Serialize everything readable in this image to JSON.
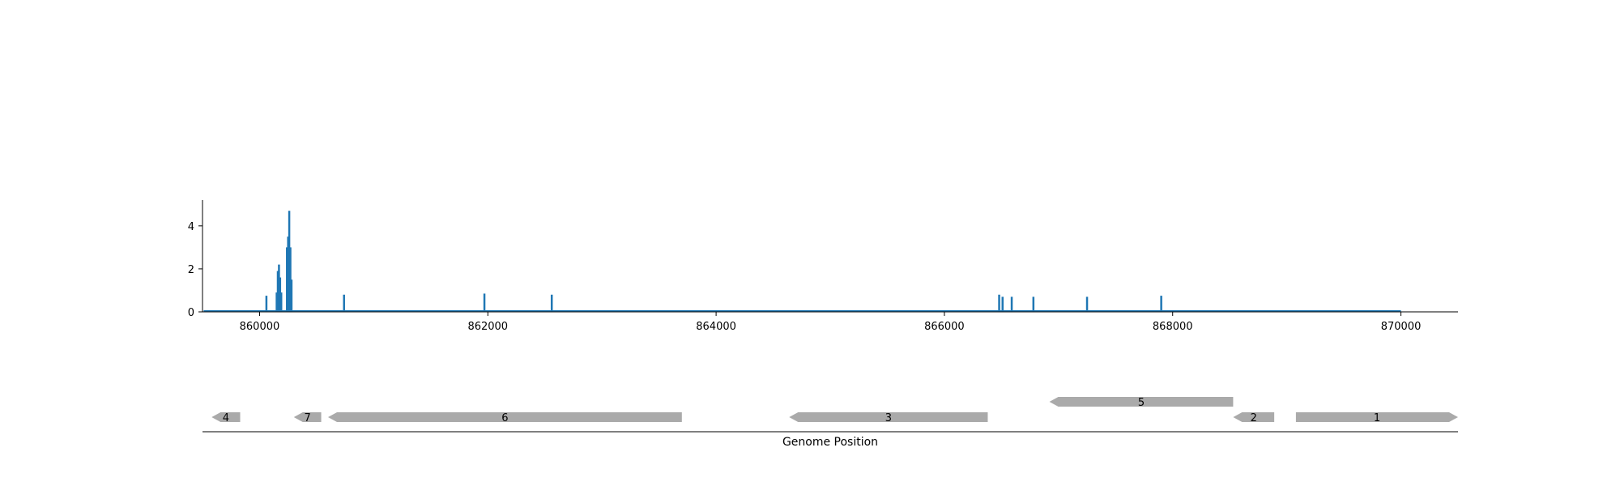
{
  "chart_data": [
    {
      "type": "bar",
      "title": "",
      "xlabel": "",
      "ylabel": "",
      "xlim": [
        859500,
        870500
      ],
      "ylim": [
        0,
        5.2
      ],
      "x_ticks": [
        860000,
        862000,
        864000,
        866000,
        868000,
        870000
      ],
      "x_tick_labels": [
        "860000",
        "862000",
        "864000",
        "866000",
        "868000",
        "870000"
      ],
      "y_ticks": [
        0,
        2,
        4
      ],
      "y_tick_labels": [
        "0",
        "2",
        "4"
      ],
      "grid": false,
      "series_color": "#1f77b4",
      "baseline_end": 870000,
      "x": [
        860060,
        860150,
        860160,
        860170,
        860180,
        860190,
        860240,
        860250,
        860260,
        860270,
        860280,
        860740,
        861970,
        862560,
        866480,
        866510,
        866590,
        866780,
        867250,
        867900
      ],
      "values": [
        0.75,
        0.9,
        1.9,
        2.2,
        1.6,
        0.9,
        3.0,
        3.5,
        4.7,
        3.0,
        1.5,
        0.8,
        0.85,
        0.8,
        0.8,
        0.7,
        0.7,
        0.7,
        0.7,
        0.75
      ]
    },
    {
      "type": "gene-map",
      "xlabel": "Genome Position",
      "xlim": [
        859500,
        870500
      ],
      "feature_color": "#aaaaaa",
      "features": [
        {
          "label": "4",
          "start": 859580,
          "end": 859830,
          "strand": -1,
          "track": 0
        },
        {
          "label": "7",
          "start": 860300,
          "end": 860540,
          "strand": -1,
          "track": 0
        },
        {
          "label": "6",
          "start": 860600,
          "end": 863700,
          "strand": -1,
          "track": 0
        },
        {
          "label": "3",
          "start": 864640,
          "end": 866380,
          "strand": -1,
          "track": 0
        },
        {
          "label": "5",
          "start": 866920,
          "end": 868530,
          "strand": -1,
          "track": 1
        },
        {
          "label": "2",
          "start": 868530,
          "end": 868890,
          "strand": -1,
          "track": 0
        },
        {
          "label": "1",
          "start": 869080,
          "end": 870500,
          "strand": 1,
          "track": 0
        }
      ]
    }
  ]
}
